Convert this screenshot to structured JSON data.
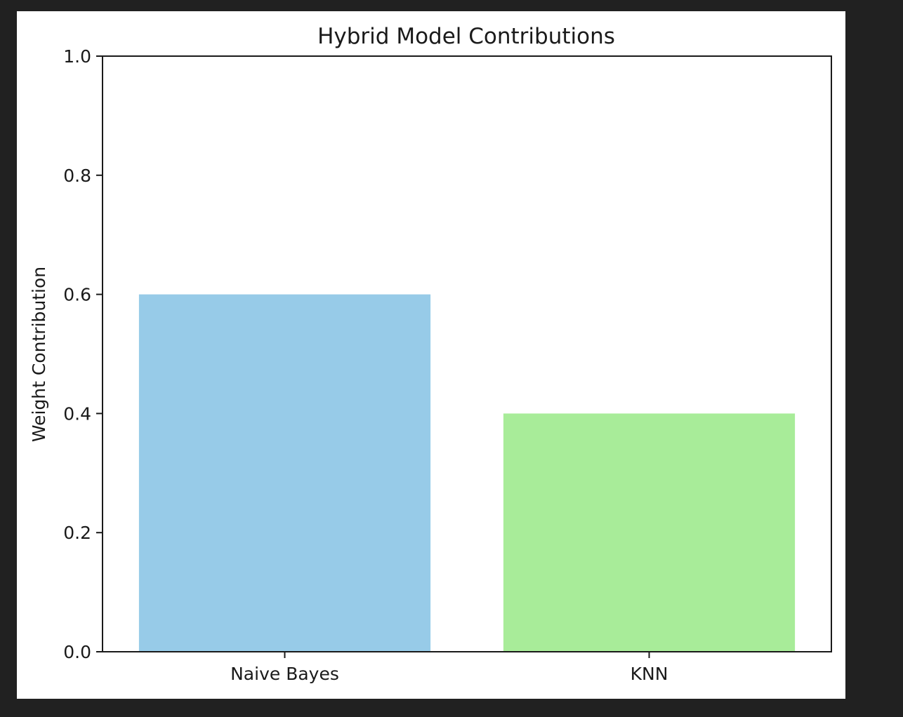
{
  "chart_data": {
    "type": "bar",
    "title": "Hybrid Model Contributions",
    "xlabel": "",
    "ylabel": "Weight Contribution",
    "categories": [
      "Naive Bayes",
      "KNN"
    ],
    "values": [
      0.6,
      0.4
    ],
    "colors": [
      "#97cbe8",
      "#a8ec99"
    ],
    "ylim": [
      0.0,
      1.0
    ],
    "yticks": [
      "0.0",
      "0.2",
      "0.4",
      "0.6",
      "0.8",
      "1.0"
    ],
    "grid": false,
    "legend": "none"
  },
  "colors": {
    "background": "#212121",
    "figure": "#ffffff",
    "axis": "#1a1a1a"
  }
}
